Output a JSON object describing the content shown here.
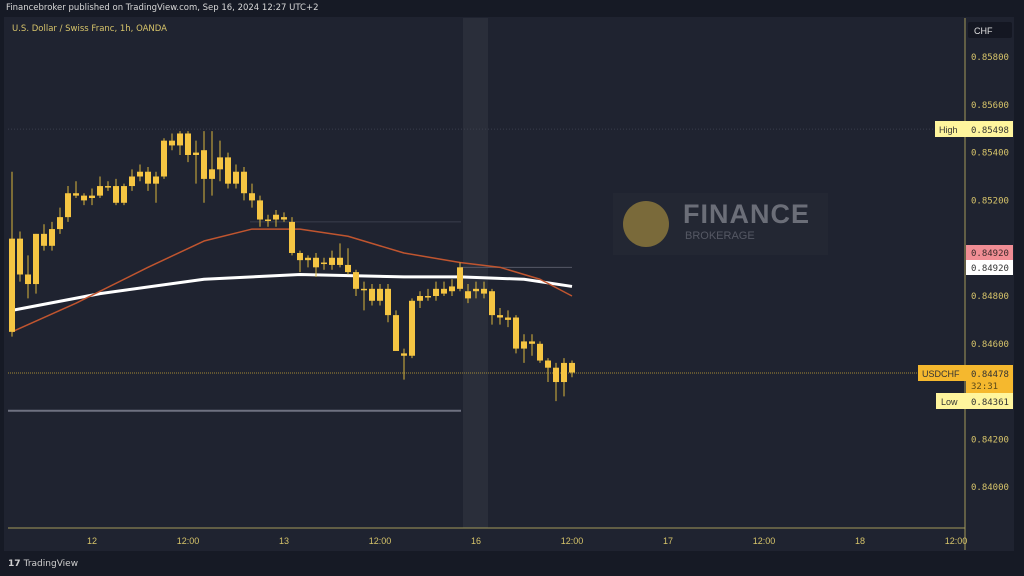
{
  "header": {
    "published": "Financebroker published on TradingView.com, Sep 16, 2024 12:27 UTC+2",
    "symbol_title": "U.S. Dollar / Swiss Franc, 1h, OANDA"
  },
  "watermark": {
    "title": "FINANCE",
    "subtitle": "BROKERAGE"
  },
  "footer": {
    "brand_icon": "17",
    "brand": "TradingView"
  },
  "colors": {
    "candle": "#f5c543",
    "ema_fast": "#c0552f",
    "ema_slow": "#ffffff",
    "axis_text": "#d7c46a",
    "background": "#1f2330"
  },
  "chart_data": {
    "type": "candlestick",
    "title": "U.S. Dollar / Swiss Franc, 1h, OANDA",
    "currency": "CHF",
    "ylim": [
      0.8388,
      0.8597
    ],
    "y_ticks": [
      "0.85800",
      "0.85600",
      "0.85400",
      "0.85200",
      "0.84800",
      "0.84600",
      "0.84200",
      "0.84000"
    ],
    "x_ticks": [
      "12",
      "12:00",
      "13",
      "12:00",
      "16",
      "12:00",
      "17",
      "12:00",
      "18",
      "12:00"
    ],
    "grid": false,
    "ohlc": [
      [
        0.8465,
        0.8532,
        0.8463,
        0.8504
      ],
      [
        0.8504,
        0.8507,
        0.8486,
        0.8489
      ],
      [
        0.8489,
        0.8497,
        0.8479,
        0.8485
      ],
      [
        0.8485,
        0.8506,
        0.8481,
        0.8506
      ],
      [
        0.8501,
        0.851,
        0.8499,
        0.8506
      ],
      [
        0.8501,
        0.8511,
        0.8499,
        0.8508
      ],
      [
        0.8508,
        0.8517,
        0.8506,
        0.8513
      ],
      [
        0.8513,
        0.8526,
        0.8511,
        0.8523
      ],
      [
        0.8523,
        0.8528,
        0.8521,
        0.8522
      ],
      [
        0.8522,
        0.8523,
        0.8518,
        0.852
      ],
      [
        0.8521,
        0.8525,
        0.8518,
        0.8522
      ],
      [
        0.8522,
        0.853,
        0.8521,
        0.8526
      ],
      [
        0.8526,
        0.8528,
        0.8524,
        0.8526
      ],
      [
        0.8526,
        0.8529,
        0.8518,
        0.8519
      ],
      [
        0.8519,
        0.8527,
        0.8518,
        0.8526
      ],
      [
        0.8526,
        0.8533,
        0.8524,
        0.853
      ],
      [
        0.853,
        0.8535,
        0.8528,
        0.8532
      ],
      [
        0.8532,
        0.8534,
        0.8524,
        0.8527
      ],
      [
        0.8527,
        0.8532,
        0.8519,
        0.853
      ],
      [
        0.853,
        0.8546,
        0.8529,
        0.8545
      ],
      [
        0.8545,
        0.8548,
        0.8541,
        0.8543
      ],
      [
        0.8543,
        0.8549,
        0.8539,
        0.8548
      ],
      [
        0.8548,
        0.8549,
        0.8536,
        0.8539
      ],
      [
        0.8539,
        0.8545,
        0.8527,
        0.854
      ],
      [
        0.8541,
        0.8549,
        0.8519,
        0.8529
      ],
      [
        0.8529,
        0.8549,
        0.8522,
        0.8533
      ],
      [
        0.8533,
        0.8545,
        0.8528,
        0.8538
      ],
      [
        0.8538,
        0.854,
        0.8525,
        0.8527
      ],
      [
        0.8527,
        0.8535,
        0.8525,
        0.8532
      ],
      [
        0.8532,
        0.8534,
        0.852,
        0.8523
      ],
      [
        0.8523,
        0.8527,
        0.8517,
        0.852
      ],
      [
        0.852,
        0.8522,
        0.8509,
        0.8512
      ],
      [
        0.8512,
        0.8514,
        0.8509,
        0.8512
      ],
      [
        0.8512,
        0.8516,
        0.8509,
        0.8514
      ],
      [
        0.8513,
        0.8515,
        0.8511,
        0.8512
      ],
      [
        0.8511,
        0.8513,
        0.8497,
        0.8498
      ],
      [
        0.8498,
        0.8499,
        0.849,
        0.8495
      ],
      [
        0.8495,
        0.8497,
        0.8492,
        0.8496
      ],
      [
        0.8496,
        0.8498,
        0.8488,
        0.8492
      ],
      [
        0.8494,
        0.8496,
        0.8491,
        0.8494
      ],
      [
        0.8493,
        0.8499,
        0.8491,
        0.8496
      ],
      [
        0.8496,
        0.8502,
        0.8492,
        0.8493
      ],
      [
        0.8493,
        0.85,
        0.8489,
        0.849
      ],
      [
        0.849,
        0.8491,
        0.848,
        0.8483
      ],
      [
        0.8483,
        0.8486,
        0.8474,
        0.8483
      ],
      [
        0.8483,
        0.8485,
        0.8476,
        0.8478
      ],
      [
        0.8478,
        0.8485,
        0.8476,
        0.8483
      ],
      [
        0.8483,
        0.8485,
        0.8469,
        0.8472
      ],
      [
        0.8472,
        0.8474,
        0.8457,
        0.8457
      ],
      [
        0.8456,
        0.8458,
        0.8445,
        0.8455
      ],
      [
        0.8455,
        0.8479,
        0.8454,
        0.8478
      ],
      [
        0.8478,
        0.8482,
        0.8475,
        0.848
      ],
      [
        0.848,
        0.8483,
        0.8478,
        0.848
      ],
      [
        0.848,
        0.8486,
        0.8478,
        0.8483
      ],
      [
        0.8481,
        0.8486,
        0.848,
        0.8483
      ],
      [
        0.8482,
        0.8487,
        0.848,
        0.8484
      ],
      [
        0.8483,
        0.8494,
        0.8482,
        0.8492
      ],
      [
        0.8482,
        0.8485,
        0.8477,
        0.8479
      ],
      [
        0.8483,
        0.8486,
        0.8479,
        0.8482
      ],
      [
        0.8481,
        0.8486,
        0.8479,
        0.8483
      ],
      [
        0.8482,
        0.8483,
        0.8468,
        0.8472
      ],
      [
        0.8472,
        0.8475,
        0.8468,
        0.8471
      ],
      [
        0.847,
        0.8474,
        0.8467,
        0.8471
      ],
      [
        0.8471,
        0.8472,
        0.8456,
        0.8458
      ],
      [
        0.8458,
        0.8464,
        0.8452,
        0.8461
      ],
      [
        0.846,
        0.8464,
        0.8455,
        0.8461
      ],
      [
        0.846,
        0.8461,
        0.8452,
        0.8453
      ],
      [
        0.8453,
        0.8454,
        0.8444,
        0.845
      ],
      [
        0.845,
        0.8452,
        0.8436,
        0.8444
      ],
      [
        0.8444,
        0.8454,
        0.8438,
        0.8452
      ],
      [
        0.8452,
        0.8453,
        0.8446,
        0.8448
      ]
    ],
    "moving_averages": [
      {
        "color": "#ffffff",
        "points": [
          [
            0,
            0.8474
          ],
          [
            11,
            0.8481
          ],
          [
            24,
            0.8487
          ],
          [
            36,
            0.8489
          ],
          [
            49,
            0.8488
          ],
          [
            56,
            0.8488
          ],
          [
            64,
            0.8487
          ],
          [
            70,
            0.8484
          ]
        ]
      },
      {
        "color": "#c0552f",
        "points": [
          [
            0,
            0.8465
          ],
          [
            8,
            0.8477
          ],
          [
            17,
            0.8492
          ],
          [
            24,
            0.8503
          ],
          [
            30,
            0.8508
          ],
          [
            36,
            0.8508
          ],
          [
            42,
            0.8505
          ],
          [
            49,
            0.8498
          ],
          [
            56,
            0.8494
          ],
          [
            61,
            0.8492
          ],
          [
            66,
            0.8487
          ],
          [
            70,
            0.848
          ]
        ]
      }
    ],
    "horizontal_levels": [
      0.8432,
      0.8511,
      0.8492,
      0.85498
    ],
    "labels": {
      "high": {
        "text": "High",
        "value": "0.85498"
      },
      "low": {
        "text": "Low",
        "value": "0.84361"
      },
      "last": {
        "text": "USDCHF",
        "value": "0.84478",
        "countdown": "32:31"
      },
      "ema_fast_value": "0.84920",
      "ema_slow_value": "0.84920"
    }
  }
}
